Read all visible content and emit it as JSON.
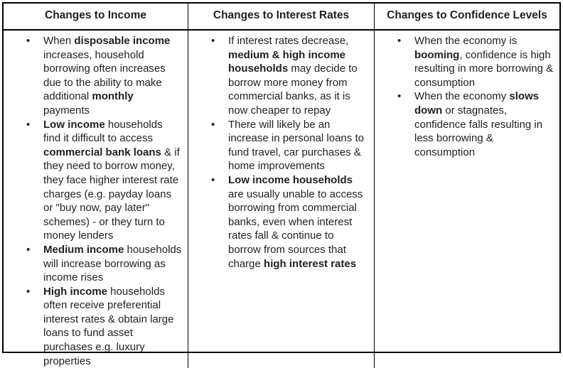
{
  "page": {
    "background_color": "#ffffff",
    "border_color": "#000000",
    "text_color": "#1f1f1f"
  },
  "table": {
    "bullet_glyph": "•",
    "columns": [
      {
        "header": "Changes to Income",
        "bullets": [
          [
            {
              "t": "When ",
              "b": false
            },
            {
              "t": "disposable income",
              "b": true
            },
            {
              "t": " increases, household borrowing often increases due to the ability to make additional ",
              "b": false
            },
            {
              "t": "monthly",
              "b": true
            },
            {
              "t": " payments",
              "b": false
            }
          ],
          [
            {
              "t": "Low income",
              "b": true
            },
            {
              "t": " households find it difficult to access ",
              "b": false
            },
            {
              "t": "commercial bank loans",
              "b": true
            },
            {
              "t": " & if they need to borrow money, they face higher interest rate charges (e.g. payday loans or \"buy now, pay later\" schemes) - or they turn to money lenders",
              "b": false
            }
          ],
          [
            {
              "t": "Medium income",
              "b": true
            },
            {
              "t": " households will increase borrowing as income rises",
              "b": false
            }
          ],
          [
            {
              "t": "High income",
              "b": true
            },
            {
              "t": " households often receive preferential interest rates & obtain large loans to fund asset purchases e.g. luxury properties",
              "b": false
            }
          ]
        ]
      },
      {
        "header": "Changes to Interest Rates",
        "bullets": [
          [
            {
              "t": "If interest rates decrease, ",
              "b": false
            },
            {
              "t": "medium & high income households",
              "b": true
            },
            {
              "t": " may decide to borrow more money from commercial banks, as it is now cheaper to repay",
              "b": false
            }
          ],
          [
            {
              "t": "There will likely be an increase in personal loans to fund travel, car purchases & home improvements",
              "b": false
            }
          ],
          [
            {
              "t": "Low income households",
              "b": true
            },
            {
              "t": " are usually unable to access borrowing from commercial banks, even when interest rates fall & continue to borrow from sources that charge ",
              "b": false
            },
            {
              "t": "high interest rates",
              "b": true
            }
          ]
        ]
      },
      {
        "header": "Changes to Confidence Levels",
        "bullets": [
          [
            {
              "t": "When the economy is ",
              "b": false
            },
            {
              "t": "booming",
              "b": true
            },
            {
              "t": ", confidence is high resulting in more borrowing & consumption",
              "b": false
            }
          ],
          [
            {
              "t": "When the economy ",
              "b": false
            },
            {
              "t": "slows down",
              "b": true
            },
            {
              "t": " or stagnates, confidence falls resulting in less borrowing & consumption",
              "b": false
            }
          ]
        ]
      }
    ]
  }
}
